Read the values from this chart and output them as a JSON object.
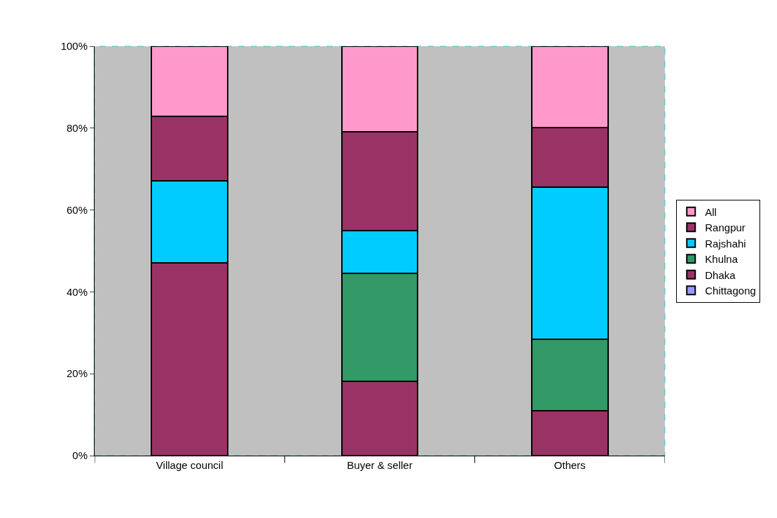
{
  "chart_data": {
    "type": "bar",
    "stacked": true,
    "categories": [
      "Village council",
      "Buyer & seller",
      "Others"
    ],
    "series": [
      {
        "name": "Chittagong",
        "color": "#9999ff",
        "values": [
          0,
          0,
          0
        ]
      },
      {
        "name": "Dhaka",
        "color": "#993366",
        "values": [
          47.1,
          18.1,
          10.9
        ]
      },
      {
        "name": "Khulna",
        "color": "#339966",
        "values": [
          0,
          26.4,
          17.6
        ]
      },
      {
        "name": "Rajshahi",
        "color": "#00ccff",
        "values": [
          20.0,
          10.5,
          37.1
        ]
      },
      {
        "name": "Rangpur",
        "color": "#993366",
        "values": [
          15.8,
          24.1,
          14.6
        ]
      },
      {
        "name": "All",
        "color": "#ff99cc",
        "values": [
          17.1,
          20.9,
          19.8
        ]
      }
    ],
    "ylim": [
      0,
      100
    ],
    "yticks": [
      {
        "value": 0,
        "label": "0%"
      },
      {
        "value": 20,
        "label": "20%"
      },
      {
        "value": 40,
        "label": "40%"
      },
      {
        "value": 60,
        "label": "60%"
      },
      {
        "value": 80,
        "label": "80%"
      },
      {
        "value": 100,
        "label": "100%"
      }
    ],
    "grid": false,
    "legend": "right"
  }
}
